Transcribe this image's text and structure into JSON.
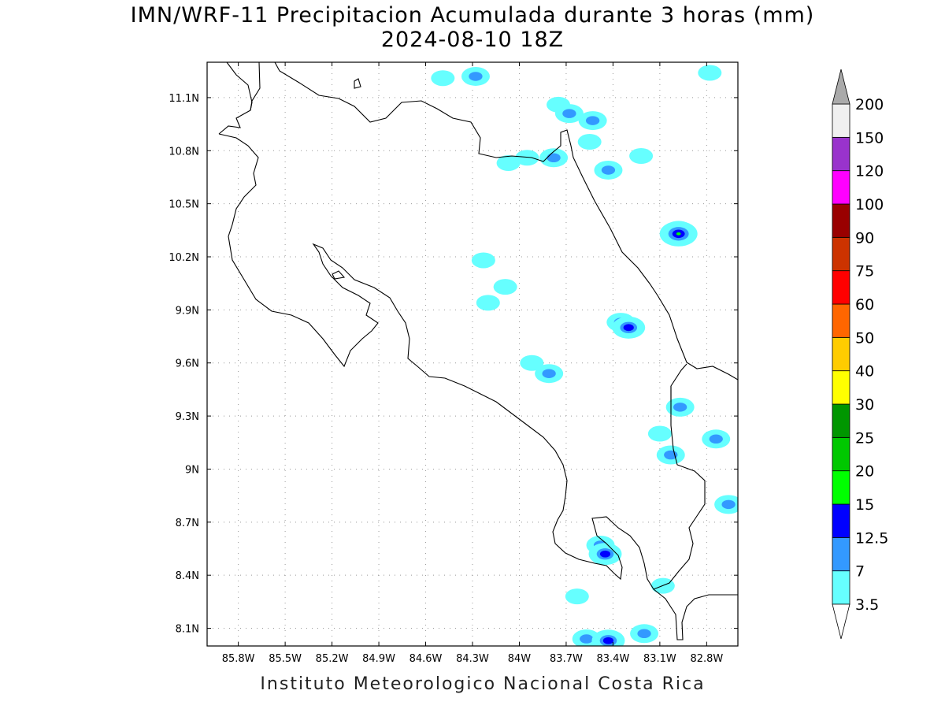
{
  "header": {
    "title": "IMN/WRF-11 Precipitacion Acumulada durante 3 horas (mm)",
    "subtitle": "2024-08-10 18Z"
  },
  "footer": {
    "credit": "Instituto Meteorologico Nacional Costa Rica"
  },
  "map": {
    "lon_range": [
      -86.0,
      -82.6
    ],
    "lat_range": [
      8.0,
      11.3
    ],
    "grid": true,
    "lon_ticks": [
      "85.8W",
      "85.5W",
      "85.2W",
      "84.9W",
      "84.6W",
      "84.3W",
      "84W",
      "83.7W",
      "83.4W",
      "83.1W",
      "82.8W"
    ],
    "lat_ticks": [
      "11.1N",
      "10.8N",
      "10.5N",
      "10.2N",
      "9.9N",
      "9.6N",
      "9.3N",
      "9N",
      "8.7N",
      "8.4N",
      "8.1N"
    ]
  },
  "colorbar": {
    "labels": [
      "3.5",
      "7",
      "12.5",
      "15",
      "20",
      "25",
      "30",
      "40",
      "50",
      "60",
      "75",
      "90",
      "100",
      "120",
      "150",
      "200"
    ],
    "colors": [
      "#ffffff",
      "#66ffff",
      "#3399ff",
      "#0000ff",
      "#00ff00",
      "#00c800",
      "#009600",
      "#ffff00",
      "#ffcc00",
      "#ff6600",
      "#ff0000",
      "#cc3300",
      "#990000",
      "#ff00ff",
      "#9933cc",
      "#f0f0f0"
    ],
    "over_color": "#aaaaaa",
    "under_color": "#ffffff"
  },
  "precip_cells": [
    {
      "lon": -84.49,
      "lat": 11.21,
      "level": 1
    },
    {
      "lon": -84.28,
      "lat": 11.22,
      "level": 2
    },
    {
      "lon": -83.75,
      "lat": 11.06,
      "level": 1
    },
    {
      "lon": -83.68,
      "lat": 11.01,
      "level": 2
    },
    {
      "lon": -83.53,
      "lat": 10.97,
      "level": 2
    },
    {
      "lon": -83.55,
      "lat": 10.85,
      "level": 1
    },
    {
      "lon": -83.43,
      "lat": 10.69,
      "level": 2
    },
    {
      "lon": -83.95,
      "lat": 10.76,
      "level": 1
    },
    {
      "lon": -83.78,
      "lat": 10.76,
      "level": 2
    },
    {
      "lon": -84.07,
      "lat": 10.73,
      "level": 1
    },
    {
      "lon": -83.22,
      "lat": 10.77,
      "level": 1
    },
    {
      "lon": -82.98,
      "lat": 10.35,
      "level": 2
    },
    {
      "lon": -82.98,
      "lat": 10.33,
      "level": 4
    },
    {
      "lon": -83.35,
      "lat": 9.83,
      "level": 2
    },
    {
      "lon": -83.3,
      "lat": 9.8,
      "level": 3
    },
    {
      "lon": -83.92,
      "lat": 9.6,
      "level": 1
    },
    {
      "lon": -83.81,
      "lat": 9.54,
      "level": 2
    },
    {
      "lon": -82.97,
      "lat": 9.35,
      "level": 2
    },
    {
      "lon": -82.74,
      "lat": 9.17,
      "level": 2
    },
    {
      "lon": -83.03,
      "lat": 9.08,
      "level": 2
    },
    {
      "lon": -83.48,
      "lat": 8.57,
      "level": 2
    },
    {
      "lon": -83.45,
      "lat": 8.52,
      "level": 3
    },
    {
      "lon": -83.57,
      "lat": 8.04,
      "level": 2
    },
    {
      "lon": -83.43,
      "lat": 8.03,
      "level": 3
    },
    {
      "lon": -83.63,
      "lat": 8.28,
      "level": 1
    },
    {
      "lon": -83.2,
      "lat": 8.07,
      "level": 2
    },
    {
      "lon": -82.78,
      "lat": 11.24,
      "level": 1
    },
    {
      "lon": -84.23,
      "lat": 10.18,
      "level": 1
    },
    {
      "lon": -84.09,
      "lat": 10.03,
      "level": 1
    },
    {
      "lon": -84.2,
      "lat": 9.94,
      "level": 1
    },
    {
      "lon": -83.1,
      "lat": 9.2,
      "level": 1
    },
    {
      "lon": -82.66,
      "lat": 8.8,
      "level": 2
    },
    {
      "lon": -83.08,
      "lat": 8.34,
      "level": 1
    }
  ]
}
